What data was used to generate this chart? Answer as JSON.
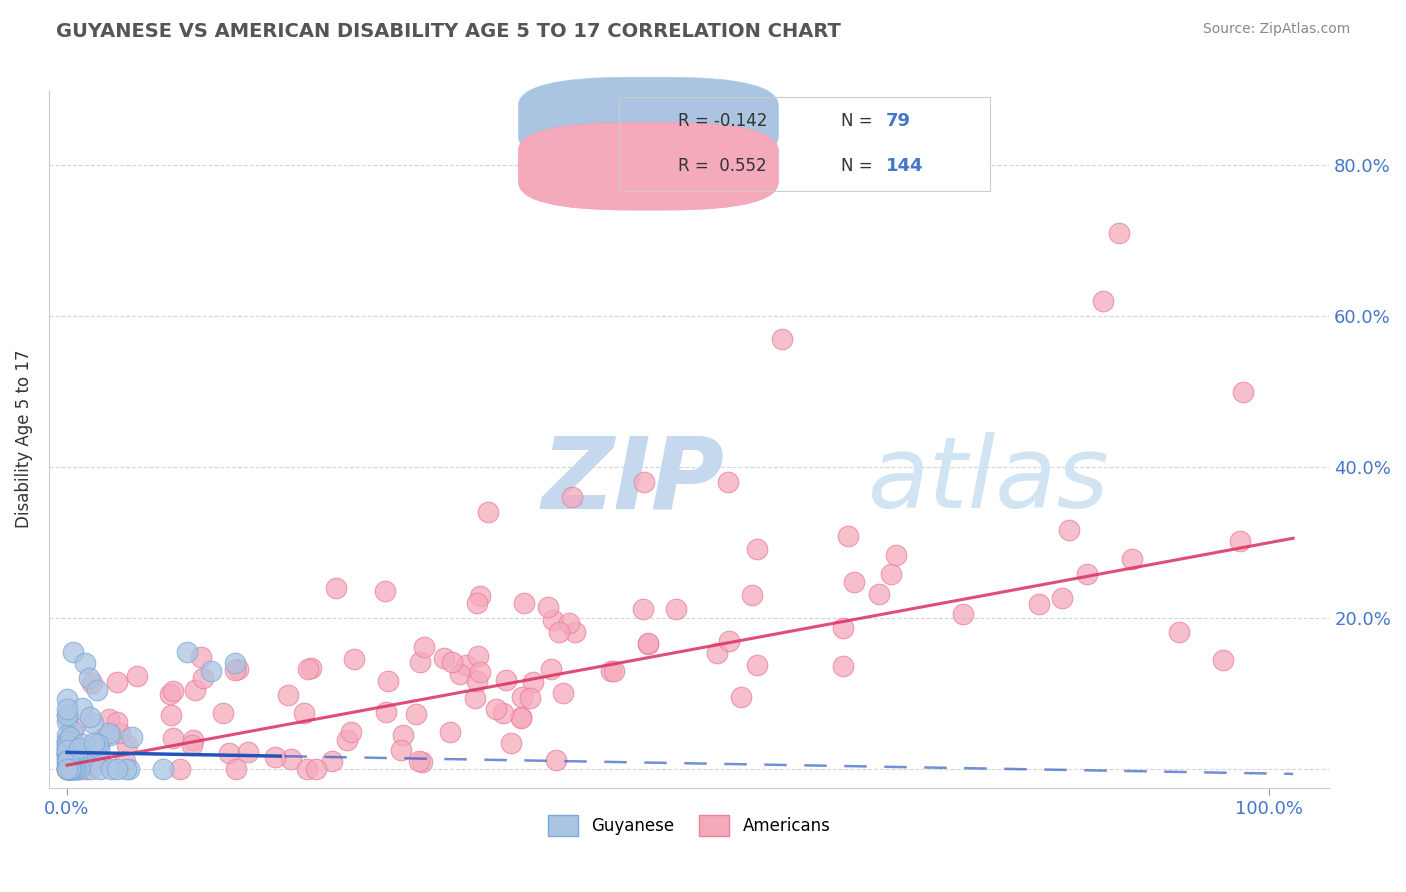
{
  "title": "GUYANESE VS AMERICAN DISABILITY AGE 5 TO 17 CORRELATION CHART",
  "source_text": "Source: ZipAtlas.com",
  "ylabel": "Disability Age 5 to 17",
  "legend_r1": "R = -0.142",
  "legend_n1": "N =  79",
  "legend_r2": "R =  0.552",
  "legend_n2": "N = 144",
  "guyanese_color": "#aac4e2",
  "guyanese_edge_color": "#7aaad8",
  "americans_color": "#f5aabc",
  "americans_edge_color": "#e880a0",
  "guyanese_line_color": "#2255bb",
  "americans_line_color": "#d93060",
  "watermark_zip_color": "#c5d8ee",
  "watermark_atlas_color": "#d0e4f4",
  "grid_color": "#cccccc",
  "title_color": "#555555",
  "tick_color": "#4477cc",
  "background_color": "#ffffff",
  "guyanese_N": 79,
  "americans_N": 144,
  "figsize": [
    14.06,
    8.92
  ],
  "dpi": 100,
  "ytick_vals": [
    0.0,
    0.2,
    0.4,
    0.6,
    0.8
  ],
  "ytick_labels": [
    "",
    "20.0%",
    "40.0%",
    "60.0%",
    "80.0%"
  ],
  "xlim": [
    -0.015,
    1.05
  ],
  "ylim": [
    -0.025,
    0.9
  ],
  "americans_slope": 0.295,
  "americans_intercept": 0.005,
  "guyanese_slope": -0.028,
  "guyanese_intercept": 0.022
}
